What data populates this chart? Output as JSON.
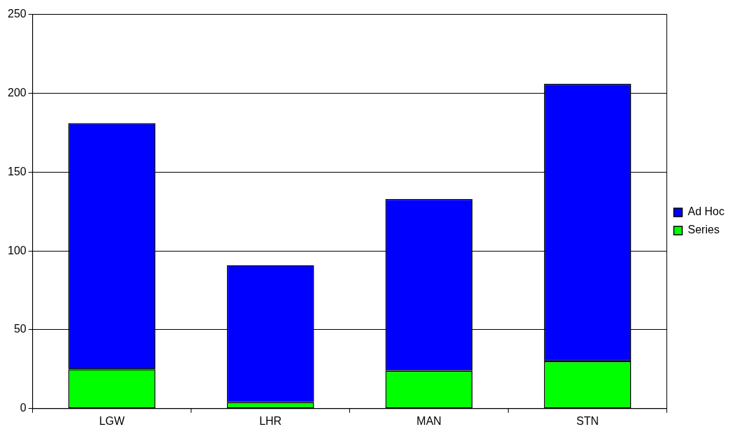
{
  "chart_data": {
    "type": "bar",
    "stacked": true,
    "categories": [
      "LGW",
      "LHR",
      "MAN",
      "STN"
    ],
    "series": [
      {
        "name": "Series",
        "color": "#00ff00",
        "values": [
          25,
          4,
          24,
          30
        ]
      },
      {
        "name": "Ad Hoc",
        "color": "#0000ff",
        "values": [
          156,
          87,
          109,
          176
        ]
      }
    ],
    "ylim": [
      0,
      250
    ],
    "yticks": [
      0,
      50,
      100,
      150,
      200,
      250
    ],
    "grid": "y",
    "legend": "right"
  }
}
